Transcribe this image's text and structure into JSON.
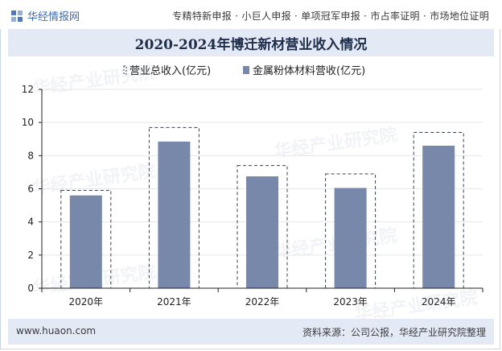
{
  "header": {
    "logo_text": "华经情报网",
    "links": "专精特新申报 · 小巨人申报 · 单项冠军申报 · 市占率证明 · 市场地位证明"
  },
  "title": "2020-2024年博迁新材营业收入情况",
  "footer": {
    "site": "www.huaon.com",
    "source": "资料来源：公司公报，华经产业研究院整理"
  },
  "watermark": "华经产业研究院",
  "colors": {
    "bar": "#7888ab",
    "outline": "#3c4150",
    "axis": "#222222",
    "grid": "#e6e6e6"
  },
  "chart_data": {
    "type": "bar",
    "title": "2020-2024年博迁新材营业收入情况",
    "categories": [
      "2020年",
      "2021年",
      "2022年",
      "2023年",
      "2024年"
    ],
    "series": [
      {
        "name": "营业总收入(亿元)",
        "style": "dashed-outline",
        "values": [
          5.9,
          9.7,
          7.4,
          6.9,
          9.4
        ]
      },
      {
        "name": "金属粉体材料营收(亿元)",
        "style": "filled",
        "values": [
          5.6,
          8.85,
          6.75,
          6.05,
          8.6
        ]
      }
    ],
    "ylim": [
      0,
      12
    ],
    "yticks": [
      0,
      2,
      4,
      6,
      8,
      10,
      12
    ],
    "xlabel": "",
    "ylabel": "",
    "legend": "top-center"
  }
}
